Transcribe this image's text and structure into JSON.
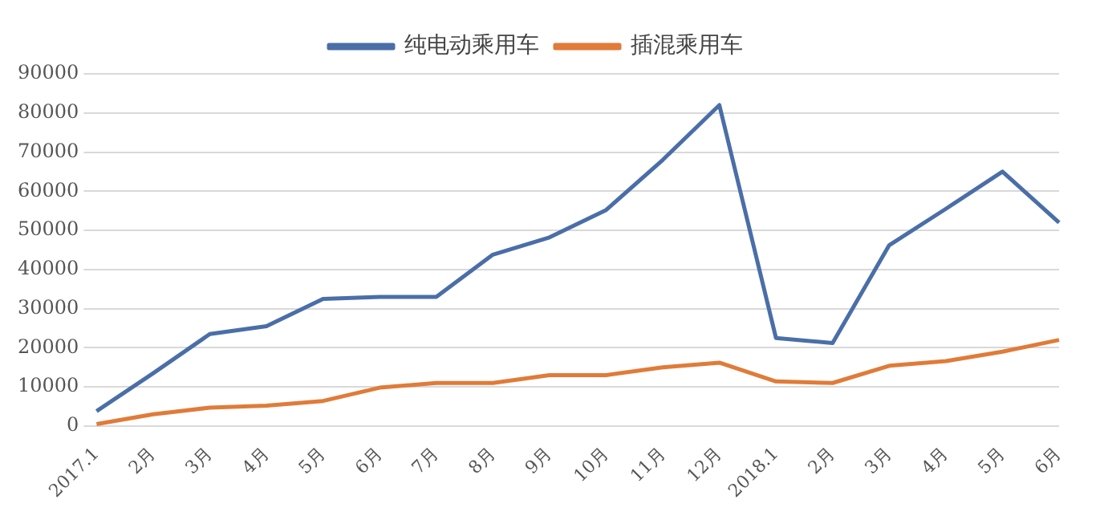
{
  "chart_data": {
    "type": "line",
    "categories": [
      "2017.1",
      "2月",
      "3月",
      "4月",
      "5月",
      "6月",
      "7月",
      "8月",
      "9月",
      "10月",
      "11月",
      "12月",
      "2018.1",
      "2月",
      "3月",
      "4月",
      "5月",
      "6月"
    ],
    "series": [
      {
        "name": "纯电动乘用车",
        "color": "#4a6ea8",
        "values": [
          3800,
          13500,
          23500,
          25500,
          32500,
          33000,
          33000,
          43800,
          48200,
          55200,
          68000,
          82000,
          22500,
          21200,
          46200,
          55500,
          65000,
          52000
        ]
      },
      {
        "name": "插混乘用车",
        "color": "#e07b39",
        "values": [
          500,
          3000,
          4700,
          5200,
          6400,
          9800,
          11000,
          11000,
          13000,
          13000,
          15000,
          16200,
          11400,
          11000,
          15400,
          16600,
          19000,
          22000
        ]
      }
    ],
    "ylim": [
      0,
      90000
    ],
    "yticks": [
      0,
      10000,
      20000,
      30000,
      40000,
      50000,
      60000,
      70000,
      80000,
      90000
    ],
    "grid": "y",
    "legend": "top",
    "marker": "none",
    "line_style": "solid"
  }
}
